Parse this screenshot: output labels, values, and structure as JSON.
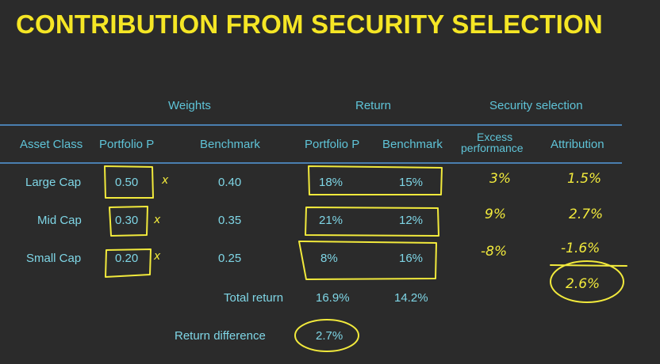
{
  "title": "CONTRIBUTION FROM SECURITY SELECTION",
  "group_headers": {
    "weights": "Weights",
    "return": "Return",
    "security": "Security selection"
  },
  "columns": {
    "asset_class": "Asset Class",
    "portfolio_w": "Portfolio P",
    "benchmark_w": "Benchmark",
    "portfolio_r": "Portfolio P",
    "benchmark_r": "Benchmark",
    "excess_l1": "Excess",
    "excess_l2": "performance",
    "attribution": "Attribution"
  },
  "rows": [
    {
      "asset": "Large Cap",
      "pw": "0.50",
      "bw": "0.40",
      "pr": "18%",
      "br": "15%",
      "excess": "3%",
      "attr": "1.5%"
    },
    {
      "asset": "Mid Cap",
      "pw": "0.30",
      "bw": "0.35",
      "pr": "21%",
      "br": "12%",
      "excess": "9%",
      "attr": "2.7%"
    },
    {
      "asset": "Small Cap",
      "pw": "0.20",
      "bw": "0.25",
      "pr": "8%",
      "br": "16%",
      "excess": "-8%",
      "attr": "-1.6%"
    }
  ],
  "total": {
    "label": "Total return",
    "portfolio": "16.9%",
    "benchmark": "14.2%"
  },
  "difference": {
    "label": "Return difference",
    "value": "2.7%"
  },
  "attribution_total": "2.6%",
  "multiply_mark": "x",
  "colors": {
    "title": "#f5e625",
    "header": "#5fc4d8",
    "cell": "#7fd6e6",
    "ink": "#f2ea3c",
    "rule": "#4a7fb0",
    "background": "#2b2b2b"
  }
}
